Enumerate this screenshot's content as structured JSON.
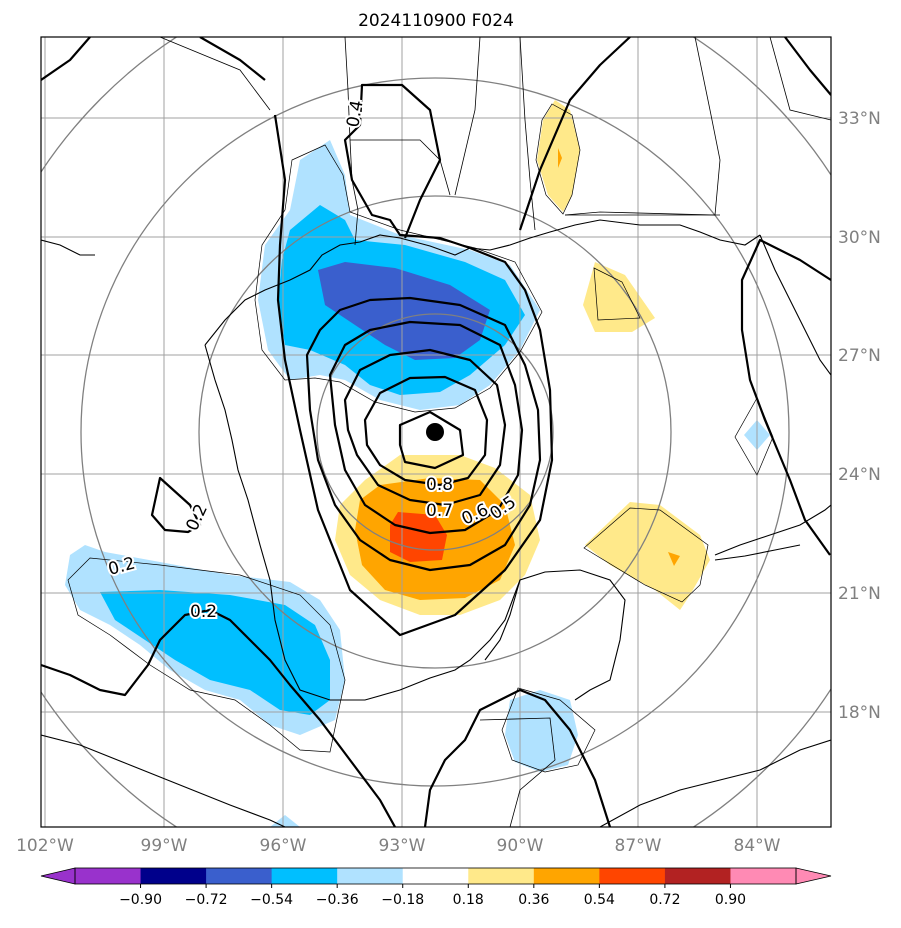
{
  "title": "2024110900 F024",
  "map": {
    "lon_labels": [
      "102°W",
      "99°W",
      "96°W",
      "93°W",
      "90°W",
      "87°W",
      "84°W"
    ],
    "lat_labels": [
      "18°N",
      "21°N",
      "24°N",
      "27°N",
      "30°N",
      "33°N"
    ],
    "grid_color": "#a0a0a0",
    "range_ring_color": "#808080",
    "storm_center_icon": "black-dot-icon"
  },
  "contour_labels": [
    "0.4",
    "0.8",
    "0.7",
    "0.6",
    "0.5",
    "0.2",
    "0.2",
    "0.2"
  ],
  "colorbar": {
    "ticks": [
      "−0.90",
      "−0.72",
      "−0.54",
      "−0.36",
      "−0.18",
      "0.18",
      "0.36",
      "0.54",
      "0.72",
      "0.90"
    ],
    "colors": [
      "#9932cc",
      "#00008b",
      "#3a5fcd",
      "#00bfff",
      "#b0e2ff",
      "#ffffff",
      "#ffe98a",
      "#ffa500",
      "#ff4500",
      "#b22222",
      "#ff8ab4"
    ],
    "left_extend_color": "#9932cc",
    "right_extend_color": "#ff8ab4"
  }
}
